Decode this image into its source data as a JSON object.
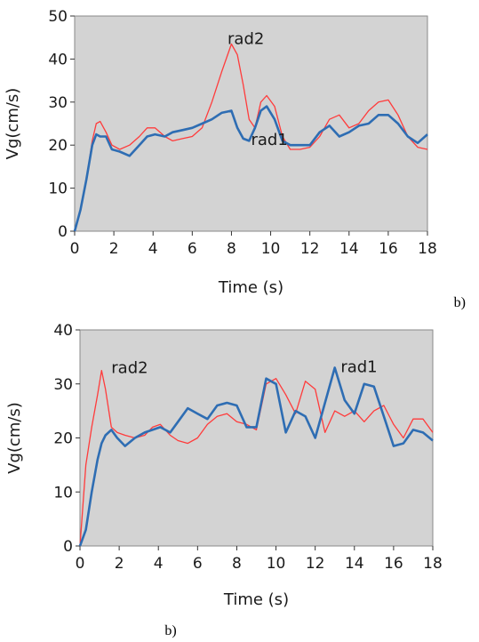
{
  "chart_data": [
    {
      "type": "line",
      "xlabel": "Time (s)",
      "ylabel": "Vg(cm/s)",
      "xlim": [
        0,
        18
      ],
      "ylim": [
        0,
        50
      ],
      "xticks": [
        "0",
        "2",
        "4",
        "6",
        "8",
        "10",
        "12",
        "14",
        "16",
        "18"
      ],
      "yticks": [
        "0",
        "10",
        "20",
        "30",
        "40",
        "50"
      ],
      "panel_label": "b)",
      "grid": false,
      "plot_background": "#d3d3d3",
      "series": [
        {
          "name": "rad2",
          "color": "#ff3b3b",
          "label_at": [
            7.8,
            43.5
          ],
          "x": [
            0,
            0.3,
            0.6,
            0.9,
            1.1,
            1.3,
            1.6,
            1.9,
            2.3,
            2.8,
            3.3,
            3.7,
            4.1,
            4.6,
            5.0,
            5.5,
            6.0,
            6.5,
            7.0,
            7.5,
            8.0,
            8.3,
            8.6,
            8.9,
            9.2,
            9.5,
            9.8,
            10.2,
            10.6,
            11.0,
            11.5,
            12.0,
            12.5,
            13.0,
            13.5,
            14.0,
            14.5,
            15.0,
            15.5,
            16.0,
            16.5,
            17.0,
            17.5,
            18.0
          ],
          "y": [
            0,
            5,
            12,
            21,
            25,
            25.5,
            23,
            20,
            19,
            20,
            22,
            24,
            24,
            22,
            21,
            21.5,
            22,
            24,
            30,
            37,
            43.5,
            41,
            34,
            26,
            24,
            30,
            31.5,
            29,
            22,
            19,
            19,
            19.5,
            22,
            26,
            27,
            24,
            25,
            28,
            30,
            30.5,
            27,
            22,
            19.5,
            19
          ]
        },
        {
          "name": "rad1",
          "color": "#2e6db3",
          "label_at": [
            9.0,
            20.0
          ],
          "x": [
            0,
            0.3,
            0.6,
            0.9,
            1.1,
            1.3,
            1.6,
            1.9,
            2.3,
            2.8,
            3.3,
            3.7,
            4.1,
            4.6,
            5.0,
            5.5,
            6.0,
            6.5,
            7.0,
            7.5,
            8.0,
            8.3,
            8.6,
            8.9,
            9.2,
            9.5,
            9.8,
            10.2,
            10.6,
            11.0,
            11.5,
            12.0,
            12.5,
            13.0,
            13.5,
            14.0,
            14.5,
            15.0,
            15.5,
            16.0,
            16.5,
            17.0,
            17.5,
            18.0
          ],
          "y": [
            0,
            5,
            12,
            20,
            22.5,
            22,
            22,
            19,
            18.5,
            17.5,
            20,
            22,
            22.5,
            22,
            23,
            23.5,
            24,
            25,
            26,
            27.5,
            28,
            24,
            21.5,
            21,
            24,
            28,
            29,
            26,
            21,
            20,
            20,
            20,
            23,
            24.5,
            22,
            23,
            24.5,
            25,
            27,
            27,
            25,
            22,
            20.5,
            22.5
          ]
        }
      ]
    },
    {
      "type": "line",
      "xlabel": "Time (s)",
      "ylabel": "Vg(cm/s)",
      "xlim": [
        0,
        18
      ],
      "ylim": [
        0,
        40
      ],
      "xticks": [
        "0",
        "2",
        "4",
        "6",
        "8",
        "10",
        "12",
        "14",
        "16",
        "18"
      ],
      "yticks": [
        "0",
        "10",
        "20",
        "30",
        "40"
      ],
      "panel_label": "b)",
      "grid": false,
      "plot_background": "#d3d3d3",
      "series": [
        {
          "name": "rad2",
          "color": "#ff3b3b",
          "label_at": [
            1.6,
            32.0
          ],
          "x": [
            0,
            0.3,
            0.6,
            0.9,
            1.1,
            1.3,
            1.6,
            1.9,
            2.3,
            2.8,
            3.3,
            3.7,
            4.1,
            4.6,
            5.0,
            5.5,
            6.0,
            6.5,
            7.0,
            7.5,
            8.0,
            8.5,
            9.0,
            9.5,
            10.0,
            10.5,
            11.0,
            11.5,
            12.0,
            12.5,
            13.0,
            13.5,
            14.0,
            14.5,
            15.0,
            15.5,
            16.0,
            16.5,
            17.0,
            17.5,
            18.0
          ],
          "y": [
            0,
            15,
            22,
            28,
            32.5,
            29,
            22,
            21,
            20.5,
            20,
            20.5,
            22,
            22.5,
            20.5,
            19.5,
            19,
            20,
            22.5,
            24,
            24.5,
            23,
            22.5,
            21.5,
            30,
            31,
            28,
            24.5,
            30.5,
            29,
            21,
            25,
            24,
            25,
            23,
            25,
            26,
            22.5,
            20,
            23.5,
            23.5,
            21
          ]
        },
        {
          "name": "rad1",
          "color": "#2e6db3",
          "label_at": [
            13.3,
            32.2
          ],
          "x": [
            0,
            0.3,
            0.6,
            0.9,
            1.1,
            1.3,
            1.6,
            1.9,
            2.3,
            2.8,
            3.3,
            3.7,
            4.1,
            4.6,
            5.0,
            5.5,
            6.0,
            6.5,
            7.0,
            7.5,
            8.0,
            8.5,
            9.0,
            9.5,
            10.0,
            10.5,
            11.0,
            11.5,
            12.0,
            12.5,
            13.0,
            13.5,
            14.0,
            14.5,
            15.0,
            15.5,
            16.0,
            16.5,
            17.0,
            17.5,
            18.0
          ],
          "y": [
            0,
            3,
            10,
            16,
            19,
            20.5,
            21.5,
            20,
            18.5,
            20,
            21,
            21.5,
            22,
            21,
            23,
            25.5,
            24.5,
            23.5,
            26,
            26.5,
            26,
            22,
            22,
            31,
            30,
            21,
            25,
            24,
            20,
            26.5,
            33,
            27,
            24.5,
            30,
            29.5,
            24,
            18.5,
            19,
            21.5,
            21,
            19.5
          ]
        }
      ]
    }
  ]
}
